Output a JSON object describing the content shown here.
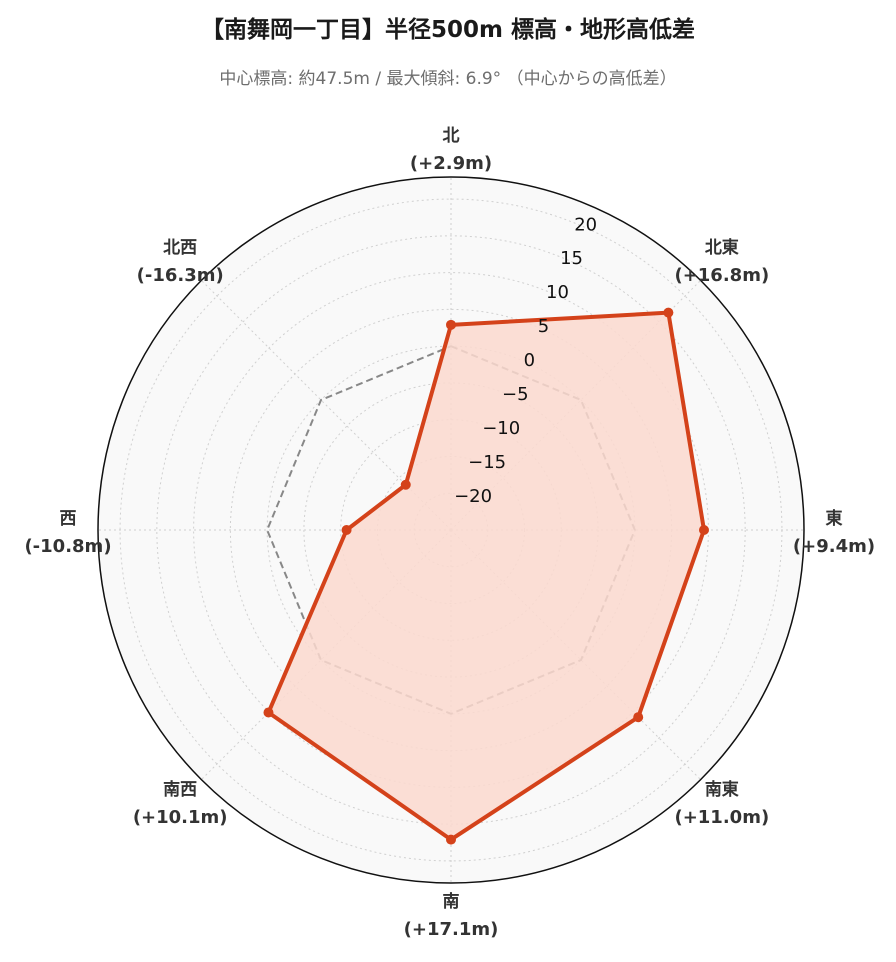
{
  "title": "【南舞岡一丁目】半径500m 標高・地形高低差",
  "subtitle": "中心標高: 約47.5m / 最大傾斜: 6.9°  （中心からの高低差）",
  "chart_data": {
    "type": "radar",
    "directions": [
      {
        "name": "北",
        "label": "(+2.9m)",
        "value": 2.9
      },
      {
        "name": "北東",
        "label": "(+16.8m)",
        "value": 16.8
      },
      {
        "name": "東",
        "label": "(+9.4m)",
        "value": 9.4
      },
      {
        "name": "南東",
        "label": "(+11.0m)",
        "value": 11.0
      },
      {
        "name": "南",
        "label": "(+17.1m)",
        "value": 17.1
      },
      {
        "name": "南西",
        "label": "(+10.1m)",
        "value": 10.1
      },
      {
        "name": "西",
        "label": "(-10.8m)",
        "value": -10.8
      },
      {
        "name": "北西",
        "label": "(-16.3m)",
        "value": -16.3
      }
    ],
    "radial_ticks": [
      -20,
      -15,
      -10,
      -5,
      0,
      5,
      10,
      15,
      20
    ],
    "r_range": [
      -25,
      23
    ],
    "reference_value": 0,
    "direction_order": "clockwise from north",
    "colors": {
      "series_line": "#d4421a",
      "series_fill": "#fbd9cf",
      "reference_line": "#888888",
      "grid": "#d0d0d0",
      "background": "#f9f9f9",
      "frame": "#111111"
    }
  }
}
